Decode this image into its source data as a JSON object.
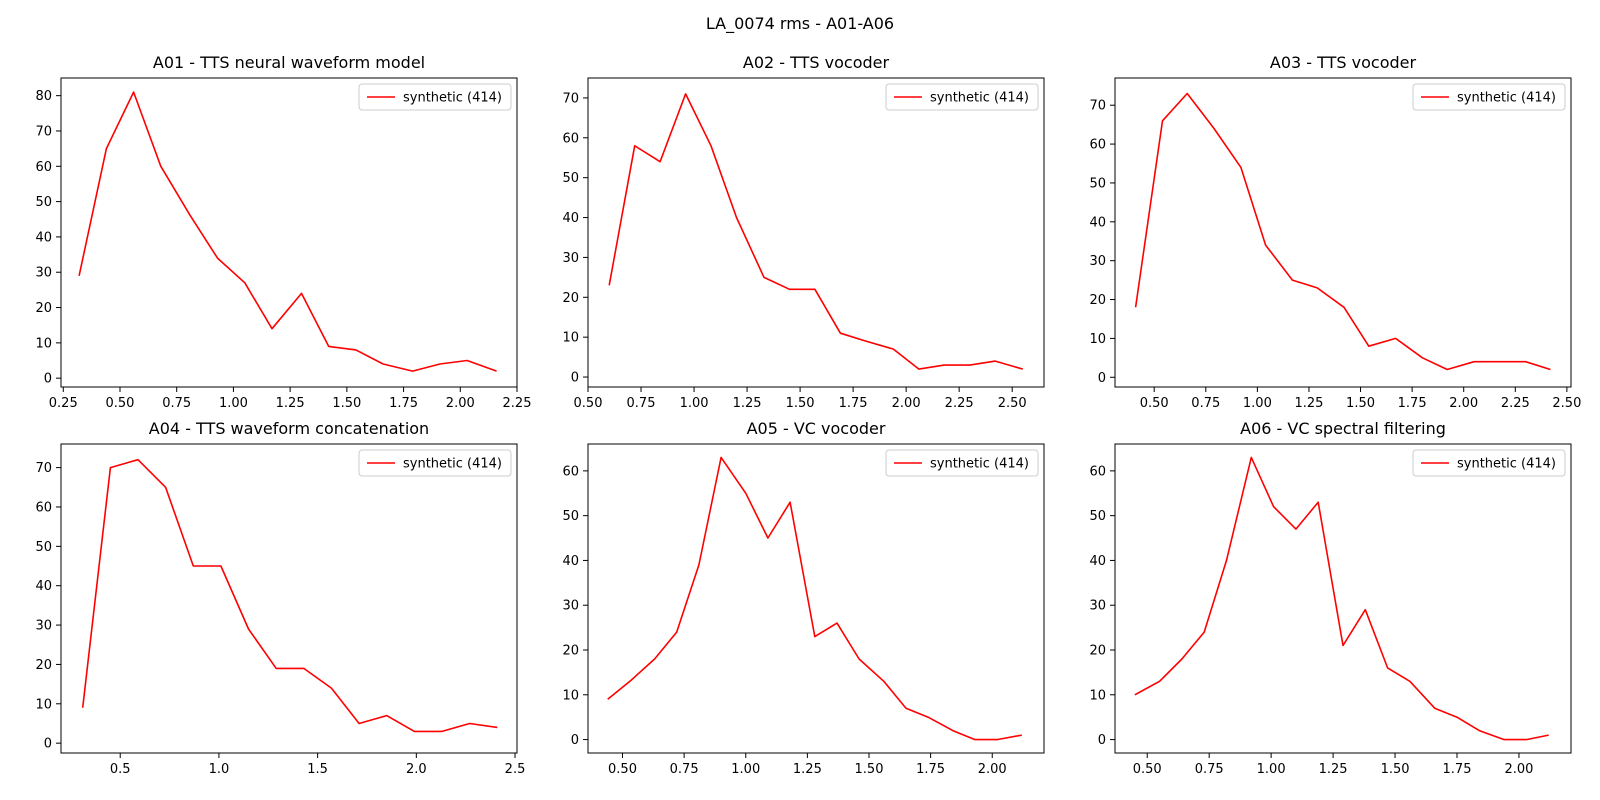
{
  "figure": {
    "suptitle": "LA_0074 rms - A01-A06",
    "line_color": "#ff0000"
  },
  "chart_data": [
    {
      "type": "line",
      "title": "A01 - TTS neural waveform model",
      "xlabel": "",
      "ylabel": "",
      "xlim": [
        0.24,
        2.25
      ],
      "ylim": [
        -2.5,
        85
      ],
      "xticks": [
        "0.25",
        "0.50",
        "0.75",
        "1.00",
        "1.25",
        "1.50",
        "1.75",
        "2.00",
        "2.25"
      ],
      "yticks": [
        "0",
        "10",
        "20",
        "30",
        "40",
        "50",
        "60",
        "70",
        "80"
      ],
      "legend": "top-right",
      "grid": false,
      "series": [
        {
          "name": "synthetic (414)",
          "x": [
            0.32,
            0.44,
            0.56,
            0.68,
            0.81,
            0.93,
            1.05,
            1.17,
            1.3,
            1.42,
            1.54,
            1.66,
            1.79,
            1.91,
            2.03,
            2.16
          ],
          "y": [
            29,
            65,
            81,
            60,
            46,
            34,
            27,
            14,
            24,
            9,
            8,
            4,
            2,
            4,
            5,
            2
          ]
        }
      ]
    },
    {
      "type": "line",
      "title": "A02 - TTS vocoder",
      "xlabel": "",
      "ylabel": "",
      "xlim": [
        0.5,
        2.65
      ],
      "ylim": [
        -2.5,
        75
      ],
      "xticks": [
        "0.50",
        "0.75",
        "1.00",
        "1.25",
        "1.50",
        "1.75",
        "2.00",
        "2.25",
        "2.50"
      ],
      "yticks": [
        "0",
        "10",
        "20",
        "30",
        "40",
        "50",
        "60",
        "70"
      ],
      "legend": "top-right",
      "grid": false,
      "series": [
        {
          "name": "synthetic (414)",
          "x": [
            0.6,
            0.72,
            0.84,
            0.96,
            1.08,
            1.2,
            1.33,
            1.45,
            1.57,
            1.69,
            1.81,
            1.94,
            2.06,
            2.18,
            2.3,
            2.42,
            2.55
          ],
          "y": [
            23,
            58,
            54,
            71,
            58,
            40,
            25,
            22,
            22,
            11,
            9,
            7,
            2,
            3,
            3,
            4,
            2
          ]
        }
      ]
    },
    {
      "type": "line",
      "title": "A03 - TTS vocoder",
      "xlabel": "",
      "ylabel": "",
      "xlim": [
        0.31,
        2.52
      ],
      "ylim": [
        -2.5,
        77
      ],
      "xticks": [
        "0.50",
        "0.75",
        "1.00",
        "1.25",
        "1.50",
        "1.75",
        "2.00",
        "2.25",
        "2.50"
      ],
      "yticks": [
        "0",
        "10",
        "20",
        "30",
        "40",
        "50",
        "60",
        "70"
      ],
      "legend": "top-right",
      "grid": false,
      "series": [
        {
          "name": "synthetic (414)",
          "x": [
            0.41,
            0.54,
            0.66,
            0.79,
            0.92,
            1.04,
            1.17,
            1.29,
            1.42,
            1.54,
            1.67,
            1.8,
            1.92,
            2.05,
            2.17,
            2.3,
            2.42
          ],
          "y": [
            18,
            66,
            73,
            64,
            54,
            34,
            25,
            23,
            18,
            8,
            10,
            5,
            2,
            4,
            4,
            4,
            2
          ]
        }
      ]
    },
    {
      "type": "line",
      "title": "A04 - TTS waveform concatenation",
      "xlabel": "",
      "ylabel": "",
      "xlim": [
        0.2,
        2.51
      ],
      "ylim": [
        -2.5,
        76
      ],
      "xticks": [
        "0.5",
        "1.0",
        "1.5",
        "2.0",
        "2.5"
      ],
      "yticks": [
        "0",
        "10",
        "20",
        "30",
        "40",
        "50",
        "60",
        "70"
      ],
      "legend": "top-right",
      "grid": false,
      "series": [
        {
          "name": "synthetic (414)",
          "x": [
            0.31,
            0.45,
            0.59,
            0.73,
            0.87,
            1.01,
            1.15,
            1.29,
            1.43,
            1.57,
            1.71,
            1.85,
            1.99,
            2.13,
            2.27,
            2.41
          ],
          "y": [
            9,
            70,
            72,
            65,
            45,
            45,
            29,
            19,
            19,
            14,
            5,
            7,
            3,
            3,
            5,
            4
          ]
        }
      ]
    },
    {
      "type": "line",
      "title": "A05 - VC vocoder",
      "xlabel": "",
      "ylabel": "",
      "xlim": [
        0.36,
        2.21
      ],
      "ylim": [
        -3,
        66
      ],
      "xticks": [
        "0.50",
        "0.75",
        "1.00",
        "1.25",
        "1.50",
        "1.75",
        "2.00"
      ],
      "yticks": [
        "0",
        "10",
        "20",
        "30",
        "40",
        "50",
        "60"
      ],
      "legend": "top-right",
      "grid": false,
      "series": [
        {
          "name": "synthetic (414)",
          "x": [
            0.44,
            0.53,
            0.63,
            0.72,
            0.81,
            0.9,
            1.0,
            1.09,
            1.18,
            1.28,
            1.37,
            1.46,
            1.56,
            1.65,
            1.74,
            1.84,
            1.93,
            2.02,
            2.12
          ],
          "y": [
            9,
            13,
            18,
            24,
            39,
            63,
            55,
            45,
            53,
            23,
            26,
            18,
            13,
            7,
            5,
            2,
            0,
            0,
            1
          ]
        }
      ]
    },
    {
      "type": "line",
      "title": "A06 - VC spectral filtering",
      "xlabel": "",
      "ylabel": "",
      "xlim": [
        0.37,
        2.21
      ],
      "ylim": [
        -3,
        66
      ],
      "xticks": [
        "0.50",
        "0.75",
        "1.00",
        "1.25",
        "1.50",
        "1.75",
        "2.00"
      ],
      "yticks": [
        "0",
        "10",
        "20",
        "30",
        "40",
        "50",
        "60"
      ],
      "legend": "top-right",
      "grid": false,
      "series": [
        {
          "name": "synthetic (414)",
          "x": [
            0.45,
            0.55,
            0.64,
            0.73,
            0.82,
            0.92,
            1.01,
            1.1,
            1.19,
            1.29,
            1.38,
            1.47,
            1.56,
            1.66,
            1.75,
            1.84,
            1.94,
            2.03,
            2.12
          ],
          "y": [
            10,
            13,
            18,
            24,
            40,
            63,
            52,
            47,
            53,
            21,
            29,
            16,
            13,
            7,
            5,
            2,
            0,
            0,
            1
          ]
        }
      ]
    }
  ]
}
